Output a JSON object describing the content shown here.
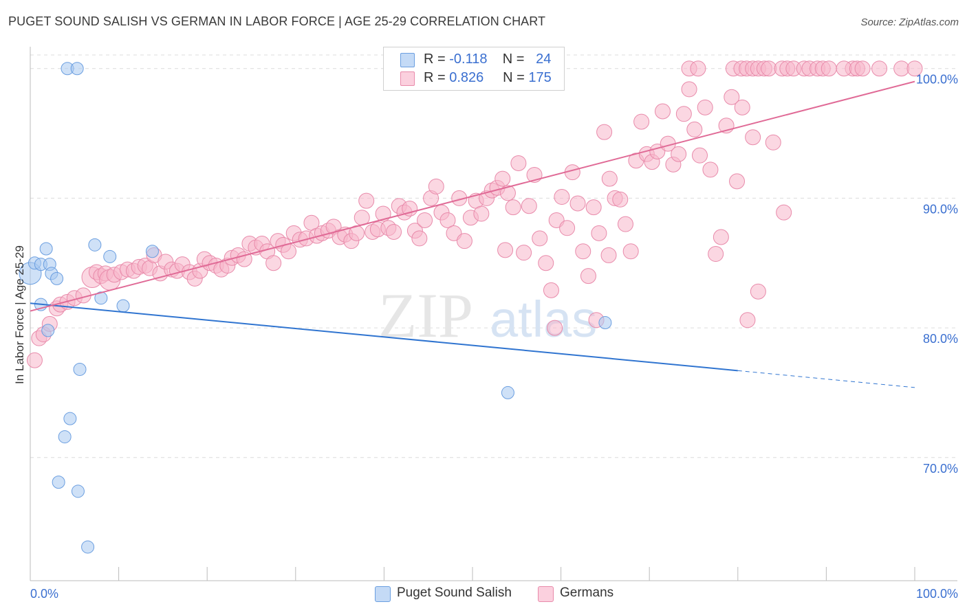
{
  "title": "PUGET SOUND SALISH VS GERMAN IN LABOR FORCE | AGE 25-29 CORRELATION CHART",
  "source": "Source: ZipAtlas.com",
  "watermark": {
    "zip": "ZIP",
    "atlas": "atlas"
  },
  "legend": {
    "rows": [
      {
        "r_label": "R = ",
        "r_value": "-0.118",
        "n_label": "N = ",
        "n_value": "24",
        "color": "#a8c8f0"
      },
      {
        "r_label": "R = ",
        "r_value": "0.826",
        "n_label": "N = ",
        "n_value": "175",
        "color": "#f7b6cb"
      }
    ]
  },
  "bottom_legend": [
    {
      "label": "Puget Sound Salish",
      "color": "#a8c8f0"
    },
    {
      "label": "Germans",
      "color": "#f7b6cb"
    }
  ],
  "chart_data": {
    "type": "scatter",
    "title": "PUGET SOUND SALISH VS GERMAN IN LABOR FORCE | AGE 25-29 CORRELATION CHART",
    "xlabel": "",
    "ylabel": "In Labor Force | Age 25-29",
    "xlim": [
      0,
      100
    ],
    "ylim": [
      60.5,
      102
    ],
    "x_tick_labels": [
      "0.0%",
      "100.0%"
    ],
    "y_ticks": [
      70,
      80,
      90,
      100
    ],
    "y_tick_labels": [
      "70.0%",
      "80.0%",
      "90.0%",
      "100.0%"
    ],
    "series": [
      {
        "name": "Puget Sound Salish",
        "color": "#a8c8f0",
        "stroke": "#6a9ee0",
        "line_color": "#2f74d0",
        "trend": {
          "x0": 0,
          "y0": 81.9,
          "x1": 80,
          "y1": 76.7,
          "dash_to_x": 100,
          "dash_to_y": 75.4
        },
        "points": [
          [
            0,
            84.2,
            16
          ],
          [
            0.5,
            85.0,
            9
          ],
          [
            1.2,
            84.9,
            9
          ],
          [
            1.8,
            86.1,
            9
          ],
          [
            2.2,
            84.9,
            9
          ],
          [
            2.4,
            84.2,
            9
          ],
          [
            3.0,
            83.8,
            9
          ],
          [
            1.2,
            81.8,
            9
          ],
          [
            2.0,
            79.8,
            9
          ],
          [
            4.2,
            100,
            9
          ],
          [
            5.3,
            100,
            9
          ],
          [
            7.3,
            86.4,
            9
          ],
          [
            9.0,
            85.5,
            9
          ],
          [
            8.0,
            82.3,
            9
          ],
          [
            10.5,
            81.7,
            9
          ],
          [
            13.8,
            85.9,
            9
          ],
          [
            5.6,
            76.8,
            9
          ],
          [
            4.5,
            73.0,
            9
          ],
          [
            3.9,
            71.6,
            9
          ],
          [
            3.2,
            68.1,
            9
          ],
          [
            5.4,
            67.4,
            9
          ],
          [
            6.5,
            63.1,
            9
          ],
          [
            54.0,
            75.0,
            9
          ],
          [
            65.0,
            80.4,
            9
          ]
        ]
      },
      {
        "name": "Germans",
        "color": "#f7b6cb",
        "stroke": "#e88aaa",
        "line_color": "#e06a96",
        "trend": {
          "x0": 0,
          "y0": 81.3,
          "x1": 100,
          "y1": 99.0
        },
        "points": [
          [
            0.5,
            77.5,
            11
          ],
          [
            1.0,
            79.2,
            11
          ],
          [
            1.5,
            79.5,
            11
          ],
          [
            2.2,
            80.3,
            11
          ],
          [
            3.0,
            81.5,
            11
          ],
          [
            3.4,
            81.8,
            11
          ],
          [
            4.2,
            82.0,
            11
          ],
          [
            5.0,
            82.3,
            11
          ],
          [
            6.0,
            82.5,
            11
          ],
          [
            7.0,
            83.9,
            15
          ],
          [
            7.5,
            84.3,
            11
          ],
          [
            8.0,
            84.0,
            11
          ],
          [
            8.5,
            84.2,
            11
          ],
          [
            9.0,
            83.7,
            15
          ],
          [
            9.5,
            84.1,
            11
          ],
          [
            10.3,
            84.3,
            11
          ],
          [
            11.0,
            84.5,
            11
          ],
          [
            11.7,
            84.4,
            11
          ],
          [
            12.3,
            84.7,
            11
          ],
          [
            13.0,
            84.8,
            11
          ],
          [
            13.5,
            84.6,
            11
          ],
          [
            14.0,
            85.6,
            11
          ],
          [
            14.7,
            84.2,
            11
          ],
          [
            15.3,
            85.1,
            11
          ],
          [
            16.0,
            84.5,
            11
          ],
          [
            16.6,
            84.4,
            11
          ],
          [
            17.2,
            84.9,
            11
          ],
          [
            18.0,
            84.3,
            11
          ],
          [
            18.6,
            83.8,
            11
          ],
          [
            19.2,
            84.4,
            11
          ],
          [
            19.7,
            85.3,
            11
          ],
          [
            20.3,
            85.0,
            11
          ],
          [
            21.0,
            84.8,
            11
          ],
          [
            21.6,
            84.5,
            11
          ],
          [
            22.3,
            84.8,
            11
          ],
          [
            22.8,
            85.4,
            11
          ],
          [
            23.5,
            85.6,
            11
          ],
          [
            24.2,
            85.3,
            11
          ],
          [
            24.8,
            86.5,
            11
          ],
          [
            25.5,
            86.2,
            11
          ],
          [
            26.2,
            86.5,
            11
          ],
          [
            26.8,
            85.9,
            11
          ],
          [
            27.5,
            85.0,
            11
          ],
          [
            28.0,
            86.7,
            11
          ],
          [
            28.6,
            86.4,
            11
          ],
          [
            29.2,
            85.9,
            11
          ],
          [
            29.8,
            87.3,
            11
          ],
          [
            30.5,
            86.8,
            11
          ],
          [
            31.2,
            86.9,
            11
          ],
          [
            31.8,
            88.1,
            11
          ],
          [
            32.4,
            87.1,
            11
          ],
          [
            33.0,
            87.3,
            11
          ],
          [
            33.7,
            87.5,
            11
          ],
          [
            34.3,
            87.8,
            11
          ],
          [
            35.0,
            87.0,
            11
          ],
          [
            35.6,
            87.2,
            11
          ],
          [
            36.3,
            86.7,
            11
          ],
          [
            36.9,
            87.3,
            11
          ],
          [
            37.5,
            88.5,
            11
          ],
          [
            38.0,
            89.8,
            11
          ],
          [
            38.7,
            87.4,
            11
          ],
          [
            39.3,
            87.6,
            11
          ],
          [
            39.9,
            88.8,
            11
          ],
          [
            40.5,
            87.7,
            11
          ],
          [
            41.1,
            87.4,
            11
          ],
          [
            41.7,
            89.4,
            11
          ],
          [
            42.3,
            88.9,
            11
          ],
          [
            42.9,
            89.2,
            11
          ],
          [
            43.5,
            87.5,
            11
          ],
          [
            44.0,
            86.9,
            11
          ],
          [
            44.6,
            88.3,
            11
          ],
          [
            45.3,
            90.0,
            11
          ],
          [
            45.9,
            90.9,
            11
          ],
          [
            46.5,
            88.9,
            11
          ],
          [
            47.2,
            88.3,
            11
          ],
          [
            47.9,
            87.3,
            11
          ],
          [
            48.5,
            90.0,
            11
          ],
          [
            49.1,
            86.7,
            11
          ],
          [
            49.8,
            88.5,
            11
          ],
          [
            50.4,
            89.8,
            11
          ],
          [
            51.0,
            88.8,
            11
          ],
          [
            51.6,
            90.0,
            11
          ],
          [
            52.2,
            90.6,
            11
          ],
          [
            52.8,
            90.8,
            11
          ],
          [
            53.4,
            91.5,
            11
          ],
          [
            53.7,
            86.0,
            11
          ],
          [
            54.0,
            90.4,
            11
          ],
          [
            54.6,
            89.3,
            11
          ],
          [
            55.2,
            92.7,
            11
          ],
          [
            55.8,
            85.8,
            11
          ],
          [
            56.4,
            89.4,
            11
          ],
          [
            57.0,
            91.8,
            11
          ],
          [
            57.6,
            86.9,
            11
          ],
          [
            58.3,
            85.0,
            11
          ],
          [
            58.9,
            82.9,
            11
          ],
          [
            59.5,
            88.3,
            11
          ],
          [
            60.1,
            90.1,
            11
          ],
          [
            60.7,
            87.7,
            11
          ],
          [
            61.3,
            92.0,
            11
          ],
          [
            61.9,
            89.6,
            11
          ],
          [
            62.5,
            85.9,
            11
          ],
          [
            63.1,
            84.0,
            11
          ],
          [
            63.7,
            89.3,
            11
          ],
          [
            64.3,
            87.3,
            11
          ],
          [
            64.9,
            95.1,
            11
          ],
          [
            65.5,
            91.5,
            11
          ],
          [
            66.1,
            90.0,
            11
          ],
          [
            66.7,
            89.9,
            11
          ],
          [
            67.3,
            88.0,
            11
          ],
          [
            67.9,
            85.9,
            11
          ],
          [
            68.5,
            92.9,
            11
          ],
          [
            69.1,
            95.9,
            11
          ],
          [
            69.7,
            93.4,
            11
          ],
          [
            70.3,
            92.8,
            11
          ],
          [
            70.9,
            93.6,
            11
          ],
          [
            71.5,
            96.7,
            11
          ],
          [
            72.1,
            94.2,
            11
          ],
          [
            72.7,
            92.6,
            11
          ],
          [
            73.3,
            93.4,
            11
          ],
          [
            73.9,
            96.5,
            11
          ],
          [
            74.5,
            98.4,
            11
          ],
          [
            75.1,
            95.3,
            11
          ],
          [
            75.7,
            93.3,
            11
          ],
          [
            76.3,
            97.0,
            11
          ],
          [
            76.9,
            92.2,
            11
          ],
          [
            77.5,
            85.7,
            11
          ],
          [
            78.1,
            87.0,
            11
          ],
          [
            78.7,
            95.6,
            11
          ],
          [
            79.3,
            97.8,
            11
          ],
          [
            79.9,
            91.3,
            11
          ],
          [
            80.5,
            97.0,
            11
          ],
          [
            81.1,
            80.6,
            11
          ],
          [
            81.7,
            94.7,
            11
          ],
          [
            82.3,
            82.8,
            11
          ],
          [
            84.0,
            94.3,
            11
          ],
          [
            85.2,
            88.9,
            11
          ],
          [
            64.0,
            80.6,
            11
          ],
          [
            59.3,
            80.0,
            11
          ],
          [
            65.4,
            85.6,
            11
          ],
          [
            93.0,
            100,
            11
          ],
          [
            74.5,
            100,
            11
          ],
          [
            75.5,
            100,
            11
          ],
          [
            79.5,
            100,
            11
          ],
          [
            80.4,
            100,
            11
          ],
          [
            81.0,
            100,
            11
          ],
          [
            81.7,
            100,
            11
          ],
          [
            82.3,
            100,
            11
          ],
          [
            83.0,
            100,
            11
          ],
          [
            83.5,
            100,
            11
          ],
          [
            85.0,
            100,
            11
          ],
          [
            85.6,
            100,
            11
          ],
          [
            86.3,
            100,
            11
          ],
          [
            87.5,
            100,
            11
          ],
          [
            88.1,
            100,
            11
          ],
          [
            89.0,
            100,
            11
          ],
          [
            89.6,
            100,
            11
          ],
          [
            92.0,
            100,
            11
          ],
          [
            93.5,
            100,
            11
          ],
          [
            96.0,
            100,
            11
          ],
          [
            98.5,
            100,
            11
          ],
          [
            100,
            100,
            11
          ],
          [
            94.1,
            100,
            11
          ],
          [
            90.3,
            100,
            11
          ]
        ]
      }
    ]
  }
}
